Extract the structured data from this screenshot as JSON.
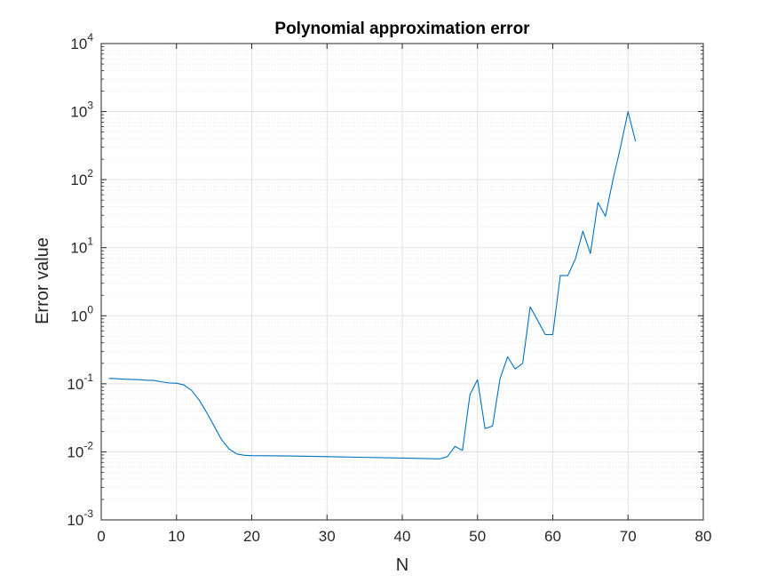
{
  "chart_data": {
    "type": "line",
    "title": "Polynomial approximation error",
    "xlabel": "N",
    "ylabel": "Error value",
    "xlim": [
      0,
      80
    ],
    "ylim": [
      0.001,
      10000
    ],
    "yscale": "log",
    "grid": true,
    "minor_grid": true,
    "x_ticks": [
      0,
      10,
      20,
      30,
      40,
      50,
      60,
      70,
      80
    ],
    "y_tick_exponents": [
      -3,
      -2,
      -1,
      0,
      1,
      2,
      3,
      4
    ],
    "y_tick_base": "10",
    "colors": {
      "line": "#0072BD",
      "axis": "#262626",
      "grid": "#dcdcdc",
      "minor_grid": "#e6e6e6"
    },
    "series": [
      {
        "x": [
          1,
          2,
          3,
          4,
          5,
          6,
          7,
          8,
          9,
          10,
          11,
          12,
          13,
          14,
          15,
          16,
          17,
          18,
          19,
          20,
          25,
          30,
          35,
          40,
          45,
          46,
          47,
          48,
          49,
          50,
          51,
          52,
          53,
          54,
          55,
          56,
          57,
          58,
          59,
          60,
          61,
          62,
          63,
          64,
          65,
          66,
          67,
          68,
          69,
          70,
          71
        ],
        "y": [
          0.12,
          0.119,
          0.117,
          0.116,
          0.115,
          0.113,
          0.112,
          0.107,
          0.103,
          0.102,
          0.096,
          0.08,
          0.058,
          0.038,
          0.024,
          0.015,
          0.011,
          0.0093,
          0.0089,
          0.0088,
          0.0087,
          0.0085,
          0.0083,
          0.0081,
          0.0079,
          0.0085,
          0.012,
          0.0105,
          0.07,
          0.115,
          0.022,
          0.024,
          0.12,
          0.25,
          0.165,
          0.2,
          1.35,
          0.85,
          0.53,
          0.53,
          3.9,
          3.9,
          6.8,
          17.5,
          8.2,
          46,
          29,
          100,
          300,
          1000,
          365
        ]
      }
    ]
  }
}
